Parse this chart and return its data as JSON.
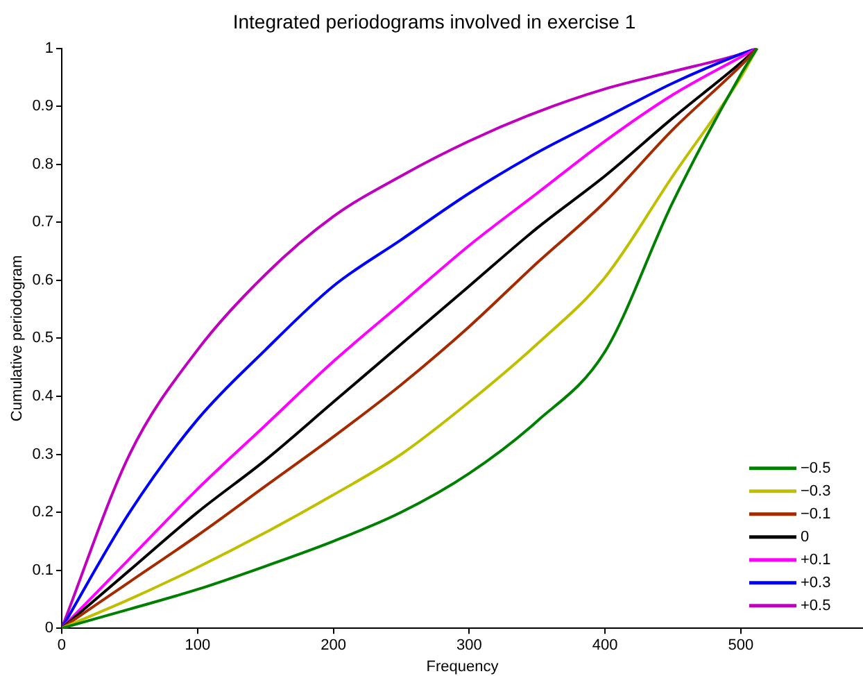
{
  "chart_data": {
    "type": "line",
    "title": "Integrated periodograms involved in exercise 1",
    "xlabel": "Frequency",
    "ylabel": "Cumulative periodogram",
    "x": [
      0,
      50,
      100,
      150,
      200,
      250,
      300,
      350,
      400,
      450,
      500,
      512
    ],
    "series": [
      {
        "name": "−0.5",
        "color": "#008000",
        "values": [
          0,
          0.033,
          0.067,
          0.107,
          0.15,
          0.2,
          0.267,
          0.357,
          0.477,
          0.735,
          0.955,
          1
        ]
      },
      {
        "name": "−0.3",
        "color": "#bfbf00",
        "values": [
          0,
          0.05,
          0.105,
          0.165,
          0.23,
          0.3,
          0.39,
          0.49,
          0.605,
          0.78,
          0.95,
          1
        ]
      },
      {
        "name": "−0.1",
        "color": "#a52a00",
        "values": [
          0,
          0.08,
          0.16,
          0.245,
          0.33,
          0.42,
          0.52,
          0.63,
          0.735,
          0.86,
          0.97,
          1
        ]
      },
      {
        "name": "0",
        "color": "#000000",
        "values": [
          0,
          0.1,
          0.2,
          0.29,
          0.39,
          0.49,
          0.59,
          0.69,
          0.78,
          0.88,
          0.975,
          1
        ]
      },
      {
        "name": "+0.1",
        "color": "#ff00ff",
        "values": [
          0,
          0.12,
          0.24,
          0.35,
          0.46,
          0.56,
          0.66,
          0.75,
          0.84,
          0.92,
          0.985,
          1
        ]
      },
      {
        "name": "+0.3",
        "color": "#0000ff",
        "values": [
          0,
          0.2,
          0.36,
          0.48,
          0.59,
          0.67,
          0.75,
          0.82,
          0.88,
          0.94,
          0.99,
          1
        ]
      },
      {
        "name": "+0.5",
        "color": "#bf00bf",
        "values": [
          0,
          0.3,
          0.48,
          0.61,
          0.71,
          0.78,
          0.84,
          0.89,
          0.93,
          0.96,
          0.99,
          1
        ]
      }
    ],
    "xlim": [
      0,
      590
    ],
    "xticks": [
      0,
      100,
      200,
      300,
      400,
      500
    ],
    "ylim": [
      0,
      1
    ],
    "yticks": [
      0,
      0.1,
      0.2,
      0.3,
      0.4,
      0.5,
      0.6,
      0.7,
      0.8,
      0.9,
      1
    ],
    "grid": false,
    "legend": "bottom right",
    "marker": "none",
    "line_style": "solid"
  }
}
